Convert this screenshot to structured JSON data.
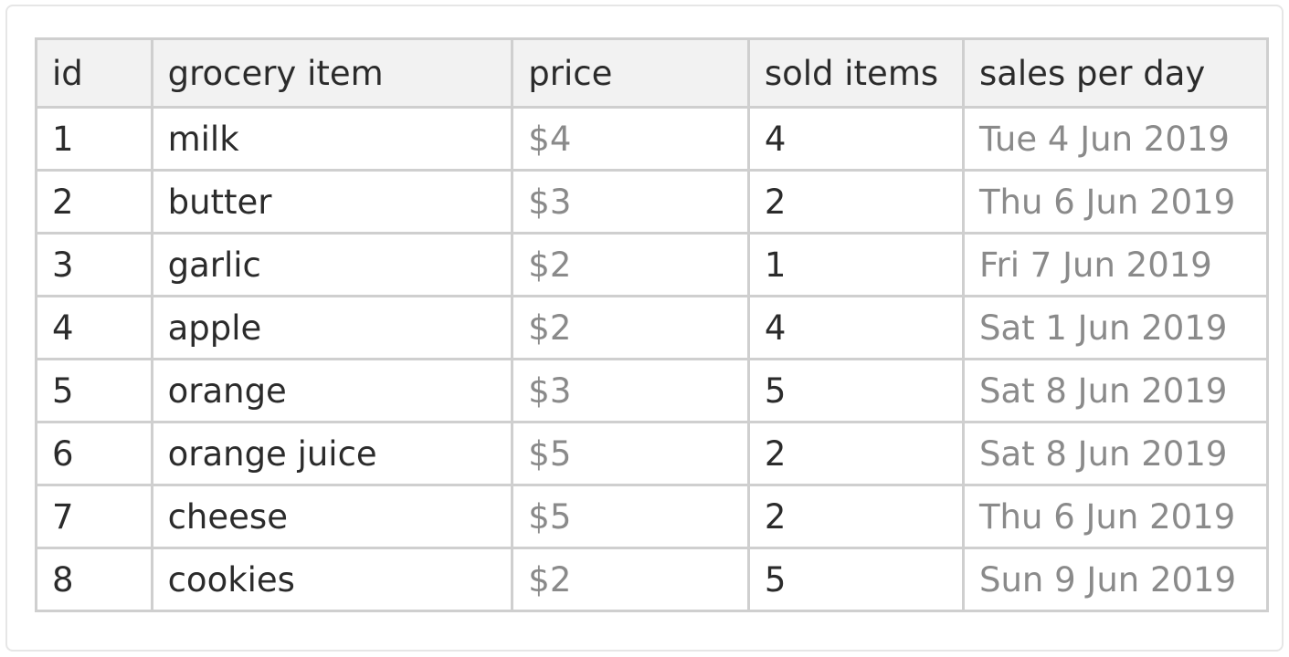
{
  "table": {
    "headers": [
      "id",
      "grocery item",
      "price",
      "sold items",
      "sales per day"
    ],
    "rows": [
      [
        "1",
        "milk",
        "$4",
        "4",
        "Tue 4 Jun 2019"
      ],
      [
        "2",
        "butter",
        "$3",
        "2",
        "Thu 6 Jun 2019"
      ],
      [
        "3",
        "garlic",
        "$2",
        "1",
        "Fri 7 Jun 2019"
      ],
      [
        "4",
        "apple",
        "$2",
        "4",
        "Sat 1 Jun 2019"
      ],
      [
        "5",
        "orange",
        "$3",
        "5",
        "Sat 8 Jun 2019"
      ],
      [
        "6",
        "orange juice",
        "$5",
        "2",
        "Sat 8 Jun 2019"
      ],
      [
        "7",
        "cheese",
        "$5",
        "2",
        "Thu 6 Jun 2019"
      ],
      [
        "8",
        "cookies",
        "$2",
        "5",
        "Sun 9 Jun 2019"
      ]
    ]
  },
  "colors": {
    "header_background": "#f2f2f2",
    "border": "#cfcfcf",
    "text": "#2b2b2b",
    "muted_text": "#8a8a8a"
  }
}
